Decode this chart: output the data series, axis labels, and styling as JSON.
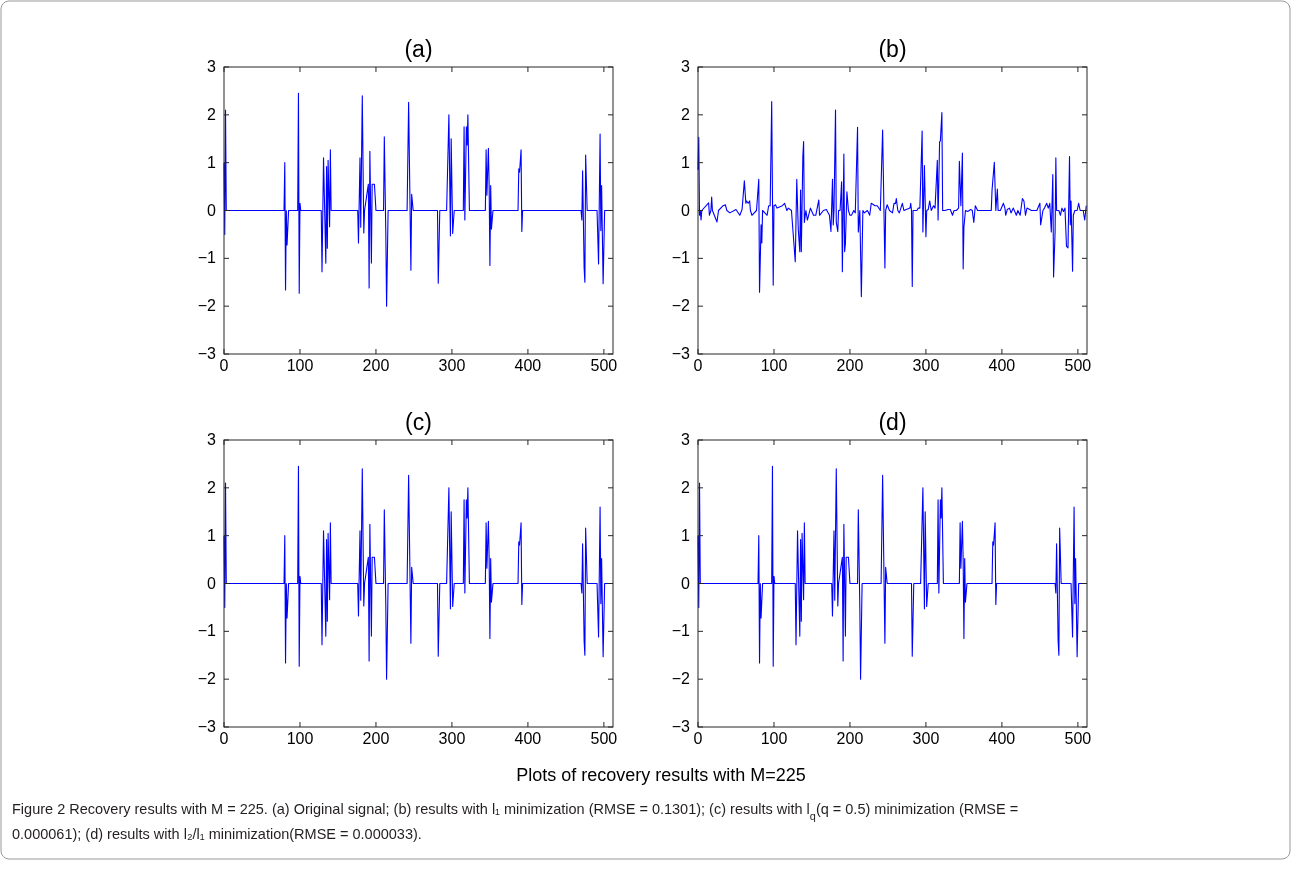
{
  "chart_data": [
    {
      "type": "line",
      "title": "(a)",
      "xlim": [
        0,
        512
      ],
      "ylim": [
        -3,
        3
      ],
      "xticks": [
        0,
        100,
        200,
        300,
        400,
        500
      ],
      "yticks": [
        {
          "value": -3,
          "label": "−3"
        },
        {
          "value": -2,
          "label": "−2"
        },
        {
          "value": -1,
          "label": "−1"
        },
        0,
        1,
        2,
        3
      ],
      "grid": false,
      "marker": "none",
      "line_style": "solid",
      "annotations": [
        "Plots of recovery results with M=225",
        "Figure 2 Recovery results with M = 225. (a) Original signal; (b) results with l₁ minimization (RMSE = 0.1301); (c) results with l$_{q}$(q = 0.5) minimization (RMSE = 0.000061); (d) results with l₂/l₁ minimization(RMSE = 0.000033)."
      ],
      "series": [
        {
          "color": "#0000ff",
          "x": [
            0,
            1,
            2,
            3,
            79,
            80,
            81,
            82,
            83,
            85,
            97,
            98,
            99,
            100,
            101,
            128,
            129,
            131,
            134,
            135,
            136,
            137,
            139,
            140,
            141,
            176,
            177,
            179,
            180,
            182,
            184,
            185,
            190,
            191,
            192,
            194,
            195,
            198,
            200,
            210,
            211,
            213,
            214,
            216,
            241,
            243,
            246,
            247,
            249,
            281,
            282,
            284,
            293,
            296,
            298,
            299,
            301,
            303,
            315,
            316,
            317,
            319,
            320,
            321,
            323,
            344,
            345,
            346,
            348,
            349,
            350,
            351,
            352,
            354,
            387,
            388,
            389,
            391,
            392,
            393,
            470,
            471,
            472,
            474,
            475,
            476,
            478,
            491,
            493,
            495,
            496,
            497,
            499,
            501,
            511
          ],
          "values": [
            1.0,
            -0.5,
            2.1,
            0,
            0,
            1.0,
            -1.66,
            0,
            -0.72,
            0,
            0,
            2.45,
            -1.73,
            0.15,
            0,
            0,
            -1.28,
            1.1,
            -1.1,
            0.92,
            -0.79,
            1.05,
            -0.34,
            1.27,
            0,
            0,
            -0.68,
            1.1,
            -0.35,
            2.4,
            -0.47,
            0,
            0.55,
            -1.62,
            1.24,
            -1.1,
            0.55,
            0.55,
            0,
            0,
            1.54,
            -0.5,
            -2.0,
            0,
            0,
            2.26,
            -1.25,
            0.34,
            0,
            0,
            -1.52,
            0,
            0,
            2.0,
            -0.53,
            1.5,
            -0.48,
            0,
            0,
            1.75,
            -0.2,
            1.75,
            1.37,
            2.0,
            0,
            0,
            1.27,
            0.32,
            1.3,
            0.5,
            -1.15,
            0.52,
            -0.39,
            0,
            0,
            0.87,
            0.8,
            1.27,
            -0.44,
            0,
            0,
            -0.2,
            0.83,
            -1.2,
            -1.5,
            1.16,
            0,
            0,
            -1.12,
            1.6,
            -0.42,
            0.52,
            -1.53,
            0,
            0
          ]
        }
      ]
    },
    {
      "type": "line",
      "title": "(b)",
      "xlim": [
        0,
        512
      ],
      "ylim": [
        -3,
        3
      ],
      "xticks": [
        0,
        100,
        200,
        300,
        400,
        500
      ],
      "yticks": [
        {
          "value": -3,
          "label": "−3"
        },
        {
          "value": -2,
          "label": "−2"
        },
        {
          "value": -1,
          "label": "−1"
        },
        0,
        1,
        2,
        3
      ],
      "grid": false,
      "marker": "none",
      "line_style": "solid",
      "series": [
        {
          "color": "#0000ff",
          "x": [
            0,
            1,
            2,
            3,
            4,
            5,
            14,
            15,
            17,
            18,
            19,
            25,
            27,
            33,
            36,
            38,
            42,
            50,
            55,
            58,
            61,
            63,
            64,
            66,
            68,
            69,
            71,
            77,
            80,
            81,
            83,
            84,
            85,
            88,
            91,
            93,
            95,
            97,
            99,
            100,
            102,
            104,
            108,
            111,
            114,
            117,
            119,
            123,
            128,
            130,
            132,
            134,
            135,
            136,
            138,
            139,
            140,
            142,
            144,
            148,
            152,
            155,
            159,
            160,
            165,
            169,
            173,
            175,
            177,
            178,
            179,
            181,
            182,
            184,
            185,
            187,
            189,
            190,
            192,
            193,
            194,
            196,
            198,
            200,
            202,
            205,
            207,
            210,
            211,
            213,
            215,
            217,
            219,
            223,
            226,
            228,
            231,
            233,
            236,
            240,
            243,
            246,
            247,
            249,
            252,
            256,
            258,
            260,
            261,
            263,
            265,
            267,
            269,
            271,
            279,
            280,
            281,
            282,
            283,
            288,
            290,
            292,
            295,
            296,
            298,
            300,
            301,
            303,
            305,
            307,
            310,
            312,
            315,
            316,
            318,
            319,
            321,
            322,
            325,
            329,
            332,
            335,
            337,
            340,
            343,
            344,
            346,
            348,
            349,
            350,
            352,
            355,
            359,
            361,
            363,
            365,
            368,
            386,
            387,
            390,
            392,
            394,
            395,
            398,
            402,
            404,
            405,
            407,
            410,
            412,
            415,
            419,
            421,
            424,
            427,
            429,
            431,
            433,
            439,
            446,
            450,
            451,
            454,
            456,
            459,
            461,
            463,
            465,
            467,
            468,
            470,
            471,
            472,
            475,
            477,
            479,
            481,
            483,
            485,
            487,
            489,
            490,
            491,
            493,
            494,
            496,
            499,
            501,
            503,
            507,
            509,
            511
          ],
          "values": [
            0.85,
            1.53,
            -0.1,
            0,
            -0.2,
            0,
            0.16,
            -0.1,
            0,
            0.28,
            0,
            -0.24,
            0,
            0.1,
            0.12,
            0,
            -0.05,
            0.02,
            -0.1,
            0.02,
            0.62,
            0.15,
            0.2,
            0.15,
            0.2,
            0,
            -0.1,
            0,
            0.65,
            -1.71,
            -0.3,
            -0.68,
            0,
            -0.05,
            -0.1,
            0.1,
            0.1,
            2.28,
            -1.56,
            0.1,
            0.12,
            0.05,
            0.08,
            0.1,
            0.15,
            0,
            0.05,
            0,
            -1.07,
            0.65,
            -0.4,
            -0.86,
            0.43,
            -0.86,
            1.13,
            1.44,
            -0.25,
            0,
            -0.2,
            0.05,
            -0.1,
            -0.1,
            0.22,
            -0.1,
            0,
            0.02,
            -0.1,
            -0.44,
            0.65,
            -0.3,
            0,
            2.1,
            -0.25,
            -0.44,
            0,
            0,
            0.6,
            -1.28,
            1.18,
            -0.86,
            -0.7,
            0.39,
            0,
            -0.1,
            -0.1,
            0,
            -0.05,
            1.74,
            -0.45,
            0,
            -1.8,
            0,
            -0.05,
            0,
            -0.1,
            0.15,
            0.12,
            0.1,
            0.1,
            0,
            1.68,
            -1.2,
            0,
            0.12,
            0,
            -0.05,
            0.15,
            0.15,
            0.25,
            0,
            -0.05,
            0.05,
            0.15,
            0,
            0.05,
            0.15,
            0,
            -1.59,
            0,
            0,
            0.05,
            0.05,
            1.66,
            -0.45,
            0.94,
            -0.55,
            0,
            0.02,
            0.2,
            0,
            0.1,
            0.05,
            1.05,
            -0.2,
            1.44,
            1.45,
            2.05,
            0,
            0,
            0.02,
            0.02,
            -0.1,
            0,
            0,
            0.05,
            1.03,
            0.1,
            1.2,
            -1.22,
            -0.35,
            0,
            -0.02,
            0.02,
            0,
            -0.25,
            0.1,
            0,
            0,
            0.42,
            1.01,
            0,
            0.45,
            0,
            0,
            0.15,
            0.05,
            -0.1,
            0.02,
            0.05,
            -0.05,
            0.05,
            -0.1,
            0,
            -0.1,
            0.25,
            0.2,
            -0.1,
            0.05,
            0,
            0,
            0.15,
            -0.3,
            0,
            0.05,
            0.15,
            0.05,
            0.15,
            -0.45,
            0.75,
            -1.39,
            -0.45,
            1.1,
            0,
            0,
            -0.1,
            0.05,
            -0.02,
            0.05,
            -0.75,
            -0.78,
            1.13,
            -0.3,
            0.2,
            -1.27,
            -0.1,
            0,
            0,
            0.15,
            0,
            0,
            -0.2,
            0.1
          ]
        }
      ]
    },
    {
      "type": "line",
      "title": "(c)",
      "xlim": [
        0,
        512
      ],
      "ylim": [
        -3,
        3
      ],
      "xticks": [
        0,
        100,
        200,
        300,
        400,
        500
      ],
      "yticks": [
        {
          "value": -3,
          "label": "−3"
        },
        {
          "value": -2,
          "label": "−2"
        },
        {
          "value": -1,
          "label": "−1"
        },
        0,
        1,
        2,
        3
      ],
      "grid": false,
      "marker": "none",
      "line_style": "solid",
      "series": [
        {
          "color": "#0000ff",
          "x": [
            0,
            1,
            2,
            3,
            79,
            80,
            81,
            82,
            83,
            85,
            97,
            98,
            99,
            100,
            101,
            128,
            129,
            131,
            134,
            135,
            136,
            137,
            139,
            140,
            141,
            176,
            177,
            179,
            180,
            182,
            184,
            185,
            190,
            191,
            192,
            194,
            195,
            198,
            200,
            210,
            211,
            213,
            214,
            216,
            241,
            243,
            246,
            247,
            249,
            281,
            282,
            284,
            293,
            296,
            298,
            299,
            301,
            303,
            315,
            316,
            317,
            319,
            320,
            321,
            323,
            344,
            345,
            346,
            348,
            349,
            350,
            351,
            352,
            354,
            387,
            388,
            389,
            391,
            392,
            393,
            470,
            471,
            472,
            474,
            475,
            476,
            478,
            491,
            493,
            495,
            496,
            497,
            499,
            501,
            511
          ],
          "values": [
            1.0,
            -0.5,
            2.1,
            0,
            0,
            1.0,
            -1.66,
            0,
            -0.72,
            0,
            0,
            2.45,
            -1.73,
            0.15,
            0,
            0,
            -1.28,
            1.1,
            -1.1,
            0.92,
            -0.79,
            1.05,
            -0.34,
            1.27,
            0,
            0,
            -0.68,
            1.1,
            -0.35,
            2.4,
            -0.47,
            0,
            0.55,
            -1.62,
            1.24,
            -1.1,
            0.55,
            0.55,
            0,
            0,
            1.54,
            -0.5,
            -2.0,
            0,
            0,
            2.26,
            -1.25,
            0.34,
            0,
            0,
            -1.52,
            0,
            0,
            2.0,
            -0.53,
            1.5,
            -0.48,
            0,
            0,
            1.75,
            -0.2,
            1.75,
            1.37,
            2.0,
            0,
            0,
            1.27,
            0.32,
            1.3,
            0.5,
            -1.15,
            0.52,
            -0.39,
            0,
            0,
            0.87,
            0.8,
            1.27,
            -0.44,
            0,
            0,
            -0.2,
            0.83,
            -1.2,
            -1.5,
            1.16,
            0,
            0,
            -1.12,
            1.6,
            -0.42,
            0.52,
            -1.53,
            0,
            0
          ]
        }
      ]
    },
    {
      "type": "line",
      "title": "(d)",
      "xlim": [
        0,
        512
      ],
      "ylim": [
        -3,
        3
      ],
      "xticks": [
        0,
        100,
        200,
        300,
        400,
        500
      ],
      "yticks": [
        {
          "value": -3,
          "label": "−3"
        },
        {
          "value": -2,
          "label": "−2"
        },
        {
          "value": -1,
          "label": "−1"
        },
        0,
        1,
        2,
        3
      ],
      "grid": false,
      "marker": "none",
      "line_style": "solid",
      "series": [
        {
          "color": "#0000ff",
          "x": [
            0,
            1,
            2,
            3,
            79,
            80,
            81,
            82,
            83,
            85,
            97,
            98,
            99,
            100,
            101,
            128,
            129,
            131,
            134,
            135,
            136,
            137,
            139,
            140,
            141,
            176,
            177,
            179,
            180,
            182,
            184,
            185,
            190,
            191,
            192,
            194,
            195,
            198,
            200,
            210,
            211,
            213,
            214,
            216,
            241,
            243,
            246,
            247,
            249,
            281,
            282,
            284,
            293,
            296,
            298,
            299,
            301,
            303,
            315,
            316,
            317,
            319,
            320,
            321,
            323,
            344,
            345,
            346,
            348,
            349,
            350,
            351,
            352,
            354,
            387,
            388,
            389,
            391,
            392,
            393,
            470,
            471,
            472,
            474,
            475,
            476,
            478,
            491,
            493,
            495,
            496,
            497,
            499,
            501,
            511
          ],
          "values": [
            1.0,
            -0.5,
            2.1,
            0,
            0,
            1.0,
            -1.66,
            0,
            -0.72,
            0,
            0,
            2.45,
            -1.73,
            0.15,
            0,
            0,
            -1.28,
            1.1,
            -1.1,
            0.92,
            -0.79,
            1.05,
            -0.34,
            1.27,
            0,
            0,
            -0.68,
            1.1,
            -0.35,
            2.4,
            -0.47,
            0,
            0.55,
            -1.62,
            1.24,
            -1.1,
            0.55,
            0.55,
            0,
            0,
            1.54,
            -0.5,
            -2.0,
            0,
            0,
            2.26,
            -1.25,
            0.34,
            0,
            0,
            -1.52,
            0,
            0,
            2.0,
            -0.53,
            1.5,
            -0.48,
            0,
            0,
            1.75,
            -0.2,
            1.75,
            1.37,
            2.0,
            0,
            0,
            1.27,
            0.32,
            1.3,
            0.5,
            -1.15,
            0.52,
            -0.39,
            0,
            0,
            0.87,
            0.8,
            1.27,
            -0.44,
            0,
            0,
            -0.2,
            0.83,
            -1.2,
            -1.5,
            1.16,
            0,
            0,
            -1.12,
            1.6,
            -0.42,
            0.52,
            -1.53,
            0,
            0
          ]
        }
      ]
    }
  ]
}
